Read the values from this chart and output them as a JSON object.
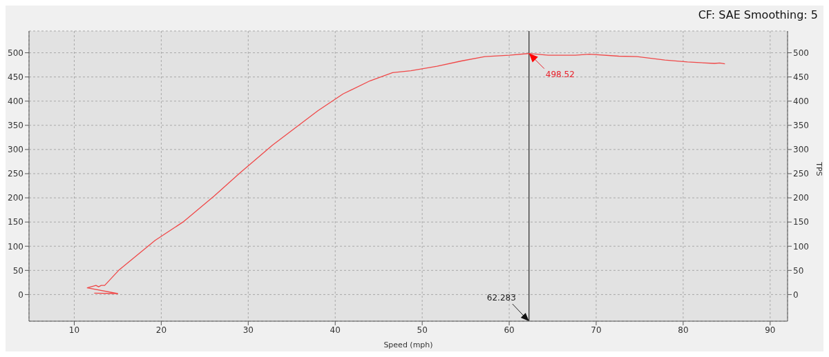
{
  "chart_data": {
    "type": "line",
    "xlabel": "Speed (mph)",
    "y2label": "TPS",
    "annotations": [
      "CF: SAE Smoothing: 5",
      {
        "text": "498.52",
        "x": 62.283,
        "y": 498.52
      }
    ],
    "x": [
      12.3,
      15.0,
      11.5,
      12.5,
      12.8,
      13.1,
      13.5,
      15.1,
      19.3,
      22.5,
      26.1,
      29.2,
      32.8,
      38.0,
      40.9,
      44.0,
      46.6,
      48.7,
      51.7,
      54.5,
      57.2,
      60.0,
      62.283,
      64.5,
      67.6,
      69.2,
      72.6,
      74.7,
      77.9,
      80.5,
      83.6,
      84.2,
      84.8
    ],
    "series": [
      {
        "color": "#f04848",
        "values": [
          3,
          2,
          14,
          19,
          16,
          19,
          19,
          50,
          112,
          150,
          204,
          254,
          309,
          380,
          415,
          442,
          459,
          463,
          472,
          483,
          492,
          495,
          498.52,
          495,
          495,
          497,
          493,
          492,
          485,
          481,
          478,
          479,
          477
        ]
      }
    ],
    "xlim": [
      4.8,
      92
    ],
    "xticks": [
      10,
      20,
      30,
      40,
      50,
      60,
      70,
      80,
      90
    ],
    "ylim": [
      -55,
      545
    ],
    "yticks": [
      0,
      50,
      100,
      150,
      200,
      250,
      300,
      350,
      400,
      450,
      500
    ],
    "y2lim": [
      -55,
      545
    ],
    "y2ticks": [
      0,
      50,
      100,
      150,
      200,
      250,
      300,
      350,
      400,
      450,
      500
    ],
    "grid": true,
    "marker": "none",
    "line_style": "solid",
    "ref_lines": [
      {
        "axis": "x",
        "value": 62.283,
        "label": "62.283",
        "color": "#000000"
      }
    ]
  }
}
